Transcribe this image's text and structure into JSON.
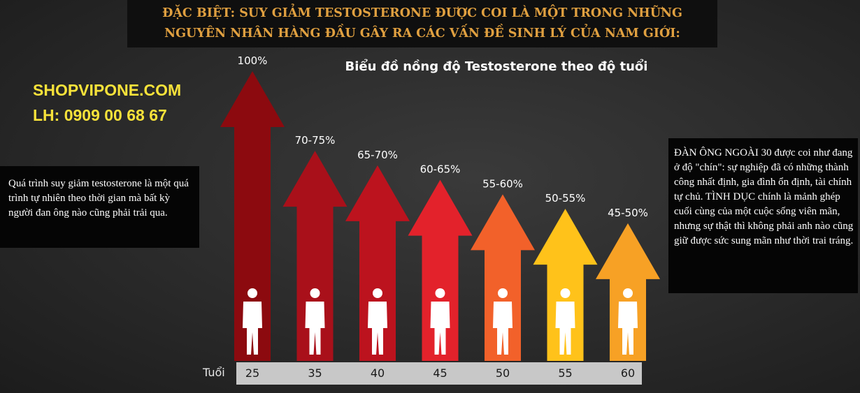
{
  "headline": {
    "line1": "ĐẶC BIỆT: SUY GIẢM TESTOSTERONE ĐƯỢC COI LÀ MỘT TRONG NHỮNG",
    "line2": "NGUYÊN NHÂN HÀNG ĐẦU GÂY RA CÁC VẤN ĐỀ SINH LÝ CỦA NAM GIỚI:"
  },
  "contact": {
    "site": "SHOPVIPONE.COM",
    "phone": "LH: 0909 00 68 67"
  },
  "notes": {
    "left": "Quá trình suy giảm testosterone là một quá trình tự nhiên theo thời gian mà bất kỳ người đan ông nào cũng phải trải qua.",
    "right": "ĐÀN ÔNG NGOÀI 30 được coi như đang ở độ \"chín\": sự nghiệp đã có những thành công nhất định, gia đình ổn định, tài chính tự chủ. TÌNH DỤC chính là mảnh ghép cuối cùng của một cuộc sống viên mãn, nhưng sự thật thì không phải anh nào cũng giữ được sức sung mãn như thời trai tráng."
  },
  "chart_data": {
    "type": "bar",
    "title": "Biểu đồ nồng độ Testosterone theo độ tuổi",
    "xlabel": "Tuổi",
    "ylabel": "",
    "categories": [
      "25",
      "35",
      "40",
      "45",
      "50",
      "55",
      "60"
    ],
    "value_labels": [
      "100%",
      "70-75%",
      "65-70%",
      "60-65%",
      "55-60%",
      "50-55%",
      "45-50%"
    ],
    "values": [
      100,
      72.5,
      67.5,
      62.5,
      57.5,
      52.5,
      47.5
    ],
    "ylim": [
      0,
      100
    ],
    "grid": false,
    "legend": "none",
    "colors": [
      "#8c0a0f",
      "#a9101a",
      "#bc131e",
      "#e3222b",
      "#f2612a",
      "#ffc21a",
      "#f7a125"
    ]
  }
}
